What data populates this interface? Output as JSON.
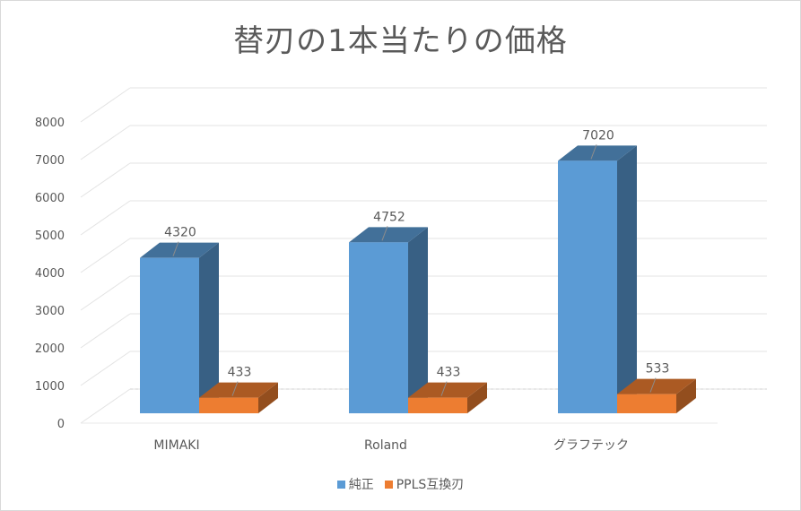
{
  "chart_data": {
    "type": "bar",
    "title": "替刃の1本当たりの価格",
    "categories": [
      "MIMAKI",
      "Roland",
      "グラフテック"
    ],
    "series": [
      {
        "name": "純正",
        "values": [
          4320,
          4752,
          7020
        ],
        "color": "#5b9bd5"
      },
      {
        "name": "PPLS互換刃",
        "values": [
          433,
          433,
          533
        ],
        "color": "#ed7d31"
      }
    ],
    "y_ticks": [
      "0",
      "1000",
      "2000",
      "3000",
      "4000",
      "5000",
      "6000",
      "7000",
      "8000"
    ],
    "ylim": [
      0,
      8000
    ],
    "grid": true,
    "legend_position": "bottom",
    "style": "3d-column"
  }
}
